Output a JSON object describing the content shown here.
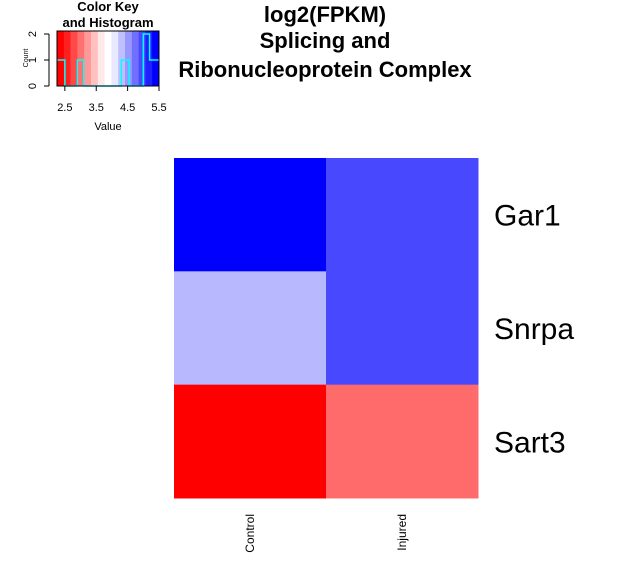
{
  "chart_data": [
    {
      "type": "heatmap",
      "title": [
        "log2(FPKM)",
        "Splicing and",
        "Ribonucleoprotein Complex"
      ],
      "rows": [
        "Gar1",
        "Snrpa",
        "Sart3"
      ],
      "columns": [
        "Control",
        "Injured"
      ],
      "values": [
        [
          5.5,
          5.0
        ],
        [
          4.0,
          5.0
        ],
        [
          2.5,
          3.0
        ]
      ],
      "colors": [
        [
          "#0000ff",
          "#4848ff"
        ],
        [
          "#b8b8ff",
          "#4848ff"
        ],
        [
          "#ff0000",
          "#ff6b6b"
        ]
      ],
      "palette": [
        "#ff0000",
        "#ff2020",
        "#ff4848",
        "#ff7070",
        "#ff9898",
        "#ffc0c0",
        "#ffe8e8",
        "#ffffff",
        "#e8e8ff",
        "#c0c0ff",
        "#9898ff",
        "#7070ff",
        "#4848ff",
        "#2020ff",
        "#0000ff"
      ]
    },
    {
      "type": "histogram",
      "title": [
        "Color Key",
        "and Histogram"
      ],
      "xlabel": "Value",
      "ylabel": "Count",
      "xlim": [
        2.25,
        5.5
      ],
      "ylim": [
        0,
        2
      ],
      "xticks": [
        "2.5",
        "3.5",
        "4.5",
        "5.5"
      ],
      "yticks": [
        "0",
        "1",
        "2"
      ],
      "step_x": [
        2.25,
        2.5,
        2.5,
        2.9,
        2.9,
        3.1,
        3.1,
        4.3,
        4.3,
        4.55,
        4.55,
        5.0,
        5.0,
        5.2,
        5.2,
        5.5
      ],
      "step_y": [
        1,
        1,
        0,
        0,
        1,
        1,
        0,
        0,
        1,
        1,
        0,
        0,
        2,
        2,
        1,
        1
      ],
      "line_color": "#00ffff"
    }
  ]
}
